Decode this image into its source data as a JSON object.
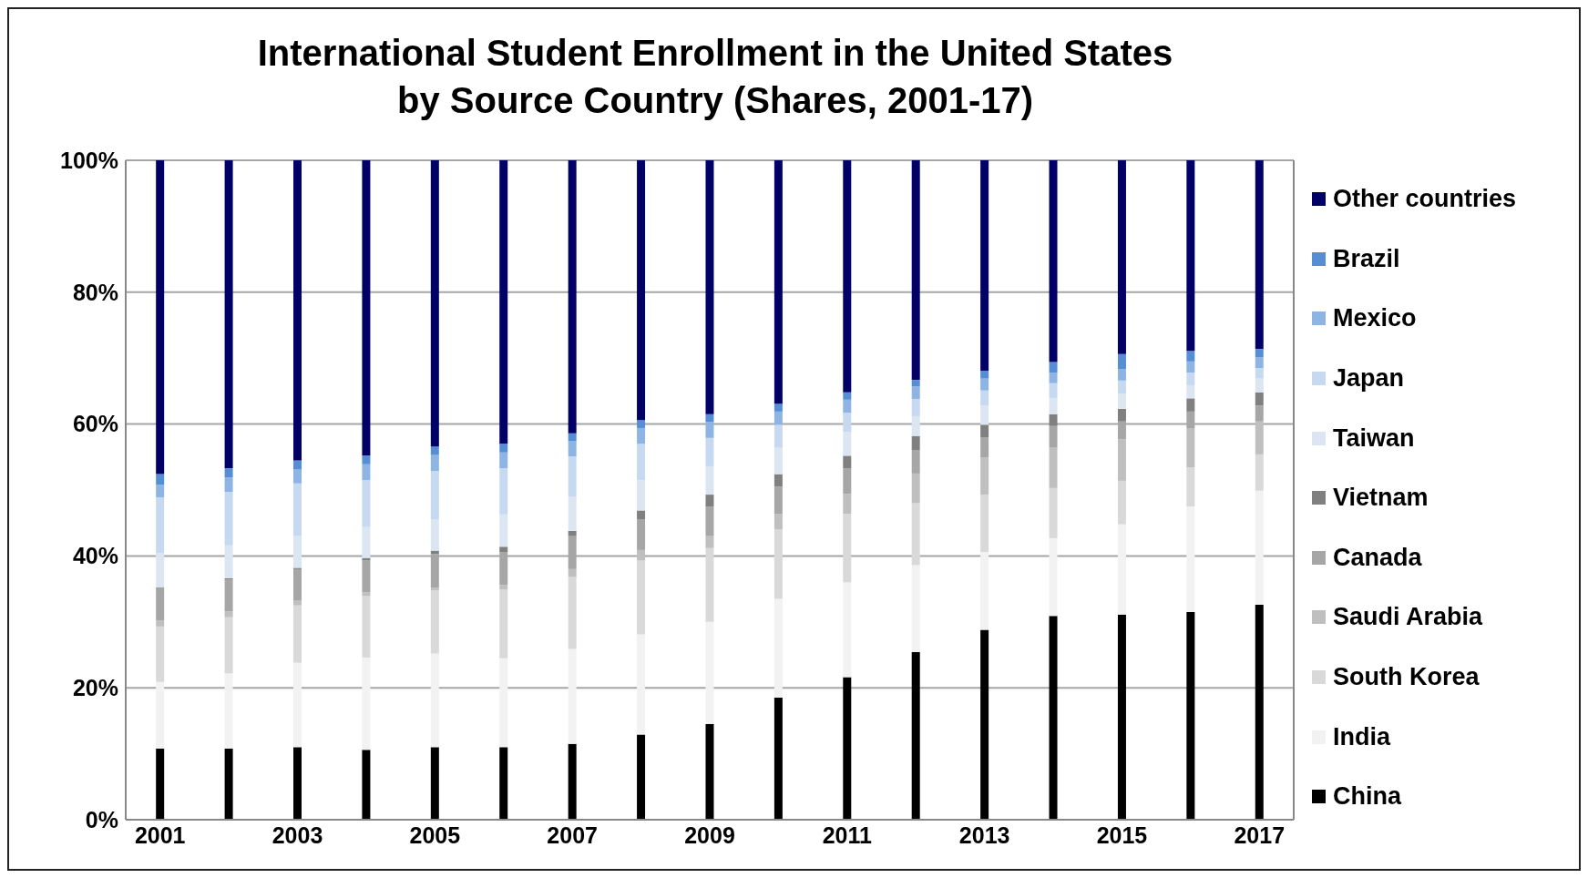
{
  "chart_data": {
    "type": "bar",
    "stacked": true,
    "title": "International Student Enrollment in the United States\nby Source Country (Shares, 2001-17)",
    "categories": [
      "2001",
      null,
      "2003",
      null,
      "2005",
      null,
      "2007",
      null,
      "2009",
      null,
      "2011",
      null,
      "2013",
      null,
      "2015",
      null,
      "2017"
    ],
    "series": [
      {
        "name": "China",
        "color": "#000000",
        "values": [
          10.8,
          10.8,
          11.0,
          10.6,
          11.0,
          11.0,
          11.5,
          12.9,
          14.5,
          18.5,
          21.6,
          25.4,
          28.8,
          30.9,
          31.1,
          31.5,
          32.6
        ]
      },
      {
        "name": "India",
        "color": "#f2f2f2",
        "values": [
          10.1,
          11.4,
          12.8,
          14.0,
          14.2,
          13.5,
          14.4,
          15.2,
          15.5,
          15.0,
          14.4,
          13.2,
          11.8,
          11.8,
          13.7,
          16.0,
          17.3
        ]
      },
      {
        "name": "South Korea",
        "color": "#d9d9d9",
        "values": [
          8.4,
          8.5,
          8.7,
          9.3,
          9.6,
          10.4,
          10.9,
          11.2,
          11.2,
          10.5,
          10.4,
          9.4,
          8.7,
          7.6,
          6.6,
          5.9,
          5.5
        ]
      },
      {
        "name": "Saudi Arabia",
        "color": "#bfbfbf",
        "values": [
          0.9,
          0.9,
          0.7,
          0.6,
          0.4,
          0.7,
          1.2,
          1.6,
          1.8,
          2.4,
          3.0,
          4.5,
          5.6,
          6.1,
          6.3,
          5.9,
          5.0
        ]
      },
      {
        "name": "Canada",
        "color": "#a6a6a6",
        "values": [
          4.8,
          4.8,
          4.8,
          4.8,
          5.1,
          5.0,
          5.0,
          4.6,
          4.5,
          4.1,
          3.9,
          3.5,
          3.1,
          3.3,
          2.7,
          2.6,
          2.4
        ]
      },
      {
        "name": "Vietnam",
        "color": "#808080",
        "values": [
          0.2,
          0.2,
          0.2,
          0.4,
          0.5,
          0.8,
          0.8,
          1.4,
          1.8,
          1.9,
          1.9,
          2.2,
          1.9,
          1.8,
          1.9,
          2.0,
          2.0
        ]
      },
      {
        "name": "Taiwan",
        "color": "#dce6f2",
        "values": [
          5.2,
          5.0,
          4.8,
          4.7,
          4.7,
          4.9,
          5.2,
          4.6,
          4.3,
          4.0,
          3.6,
          3.0,
          2.9,
          2.4,
          2.3,
          2.0,
          2.1
        ]
      },
      {
        "name": "Japan",
        "color": "#c6d9f1",
        "values": [
          8.5,
          8.1,
          8.0,
          7.1,
          7.4,
          7.0,
          6.1,
          5.5,
          4.3,
          3.5,
          2.9,
          2.6,
          2.3,
          2.3,
          2.0,
          1.9,
          1.6
        ]
      },
      {
        "name": "Mexico",
        "color": "#8db4e2",
        "values": [
          1.9,
          2.2,
          2.1,
          2.4,
          2.4,
          2.4,
          2.3,
          2.4,
          2.4,
          2.0,
          2.0,
          1.9,
          1.8,
          1.6,
          1.7,
          1.7,
          1.6
        ]
      },
      {
        "name": "Brazil",
        "color": "#558ed5",
        "values": [
          1.6,
          1.4,
          1.4,
          1.3,
          1.3,
          1.3,
          1.2,
          1.2,
          1.2,
          1.2,
          1.1,
          1.0,
          1.2,
          1.6,
          2.3,
          1.6,
          1.3
        ]
      },
      {
        "name": "Other countries",
        "color": "#000066",
        "values": [
          47.6,
          46.7,
          45.5,
          44.8,
          43.4,
          43.0,
          41.4,
          39.4,
          38.5,
          36.9,
          35.2,
          33.3,
          31.9,
          30.6,
          29.4,
          28.9,
          28.6
        ]
      }
    ],
    "ylim": [
      0,
      100
    ],
    "yticks": [
      {
        "value": 0,
        "label": "0%"
      },
      {
        "value": 20,
        "label": "20%"
      },
      {
        "value": 40,
        "label": "40%"
      },
      {
        "value": 60,
        "label": "60%"
      },
      {
        "value": 80,
        "label": "80%"
      },
      {
        "value": 100,
        "label": "100%"
      }
    ],
    "grid": "y",
    "legend": "right"
  }
}
